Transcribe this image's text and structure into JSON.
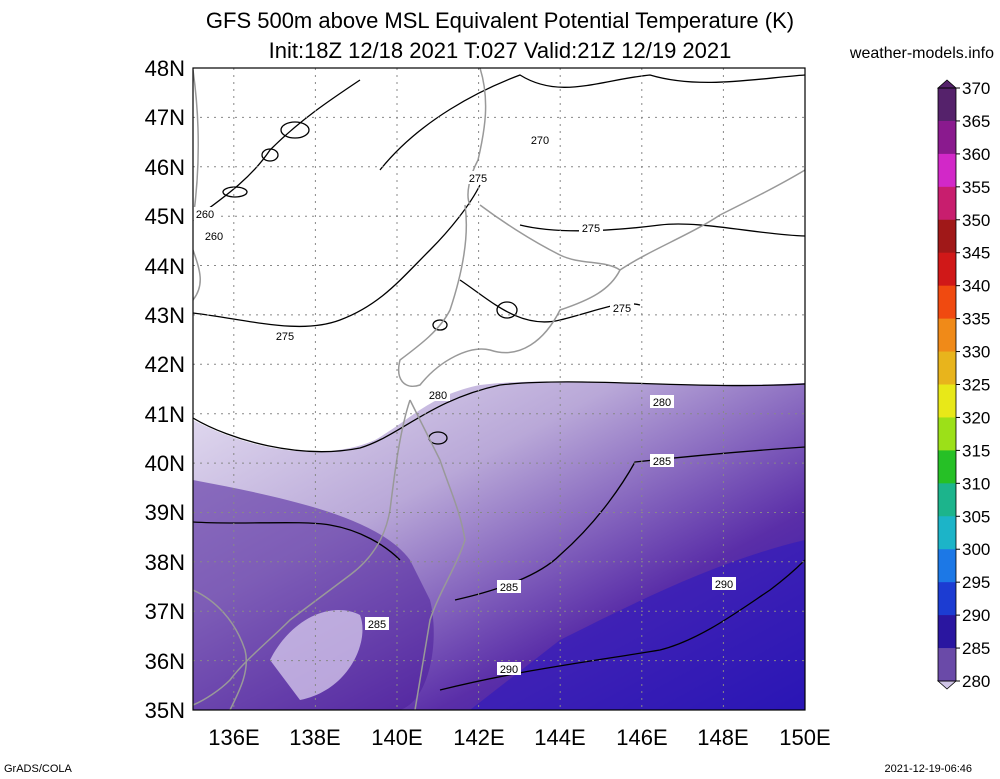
{
  "title": "GFS 500m above MSL Equivalent Potential Temperature (K)",
  "subtitle": "Init:18Z 12/18 2021 T:027 Valid:21Z 12/19 2021",
  "brand": "weather-models.info",
  "footer_left": "GrADS/COLA",
  "footer_right": "2021-12-19-06:46",
  "map": {
    "lat_range": [
      35,
      48
    ],
    "lon_range": [
      135,
      150
    ],
    "lat_ticks": [
      "48N",
      "47N",
      "46N",
      "45N",
      "44N",
      "43N",
      "42N",
      "41N",
      "40N",
      "39N",
      "38N",
      "37N",
      "36N",
      "35N"
    ],
    "lon_ticks": [
      "136E",
      "138E",
      "140E",
      "142E",
      "144E",
      "146E",
      "148E",
      "150E"
    ],
    "contour_labels": [
      "270",
      "275",
      "275",
      "275",
      "275",
      "260",
      "260",
      "280",
      "280",
      "285",
      "285",
      "285",
      "290",
      "290"
    ]
  },
  "colorbar": {
    "levels": [
      "370",
      "365",
      "360",
      "355",
      "350",
      "345",
      "340",
      "335",
      "330",
      "325",
      "320",
      "315",
      "310",
      "305",
      "300",
      "295",
      "290",
      "285",
      "280"
    ],
    "colors": [
      "#55226b",
      "#8a1a8e",
      "#d228c8",
      "#c81e6e",
      "#a01818",
      "#d01818",
      "#f04a10",
      "#f08a18",
      "#e8b41c",
      "#e8e818",
      "#9ce018",
      "#26c026",
      "#1cb48c",
      "#1cb4c8",
      "#1c78e6",
      "#1c3cd2",
      "#2a16a0",
      "#6a4aa8",
      "#cfc4e6"
    ]
  }
}
